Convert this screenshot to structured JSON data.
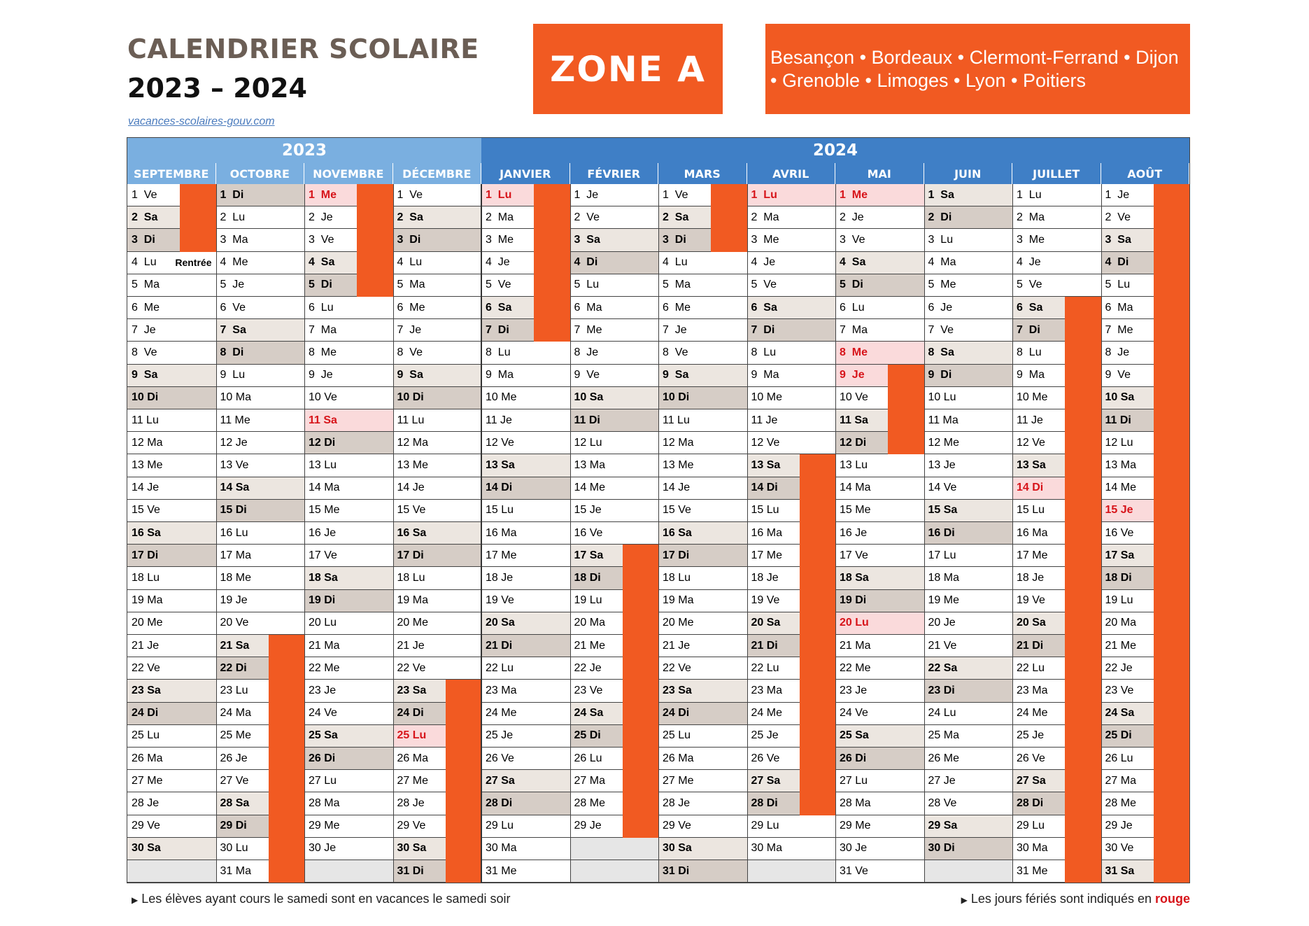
{
  "header": {
    "title_line1": "CALENDRIER SCOLAIRE",
    "title_line2": "2023 – 2024",
    "website": "vacances-scolaires-gouv.com",
    "zone": "ZONE A",
    "cities": "Besançon • Bordeaux • Clermont-Ferrand • Dijon • Grenoble • Limoges • Lyon • Poitiers"
  },
  "colors": {
    "vacation": "#f15a22",
    "year_2023": "#7aafe0",
    "year_2024": "#3f7fc6",
    "holiday_text": "#d7141a",
    "saturday_bg": "#ece6e0",
    "sunday_bg": "#d6cdc6",
    "holiday_bg": "#fadadb",
    "empty_bg": "#e6e6e6"
  },
  "years": [
    {
      "label": "2023"
    },
    {
      "label": "2024"
    }
  ],
  "note_left": "Les élèves ayant cours le samedi sont en vacances le samedi soir",
  "note_right_prefix": "Les jours fériés sont indiqués en ",
  "note_right_red": "rouge",
  "legend_rentree": "Rentrée",
  "months": [
    {
      "name": "SEPTEMBRE",
      "year": 2023,
      "start": 5,
      "days": 30,
      "holidays": [],
      "vacation": [
        [
          1,
          3
        ]
      ],
      "rentree": 4
    },
    {
      "name": "OCTOBRE",
      "year": 2023,
      "start": 0,
      "days": 31,
      "holidays": [],
      "vacation": [
        [
          21,
          31
        ]
      ]
    },
    {
      "name": "NOVEMBRE",
      "year": 2023,
      "start": 3,
      "days": 30,
      "holidays": [
        1,
        11
      ],
      "vacation": [
        [
          1,
          5
        ]
      ]
    },
    {
      "name": "DÉCEMBRE",
      "year": 2023,
      "start": 5,
      "days": 31,
      "holidays": [
        25
      ],
      "vacation": [
        [
          23,
          31
        ]
      ]
    },
    {
      "name": "JANVIER",
      "year": 2024,
      "start": 1,
      "days": 31,
      "holidays": [
        1
      ],
      "vacation": [
        [
          1,
          7
        ]
      ]
    },
    {
      "name": "FÉVRIER",
      "year": 2024,
      "start": 4,
      "days": 29,
      "holidays": [],
      "vacation": [
        [
          17,
          29
        ]
      ]
    },
    {
      "name": "MARS",
      "year": 2024,
      "start": 5,
      "days": 31,
      "holidays": [],
      "vacation": [
        [
          1,
          3
        ]
      ]
    },
    {
      "name": "AVRIL",
      "year": 2024,
      "start": 1,
      "days": 30,
      "holidays": [
        1
      ],
      "vacation": [
        [
          13,
          28
        ]
      ]
    },
    {
      "name": "MAI",
      "year": 2024,
      "start": 3,
      "days": 31,
      "holidays": [
        1,
        8,
        9,
        20
      ],
      "vacation": [
        [
          9,
          12
        ]
      ]
    },
    {
      "name": "JUIN",
      "year": 2024,
      "start": 6,
      "days": 30,
      "holidays": [],
      "vacation": []
    },
    {
      "name": "JUILLET",
      "year": 2024,
      "start": 1,
      "days": 31,
      "holidays": [
        14
      ],
      "vacation": [
        [
          6,
          31
        ]
      ]
    },
    {
      "name": "AOÛT",
      "year": 2024,
      "start": 4,
      "days": 31,
      "holidays": [
        15
      ],
      "vacation": [
        [
          1,
          31
        ]
      ]
    }
  ],
  "weekday_abbr": [
    "Di",
    "Lu",
    "Ma",
    "Me",
    "Je",
    "Ve",
    "Sa"
  ]
}
